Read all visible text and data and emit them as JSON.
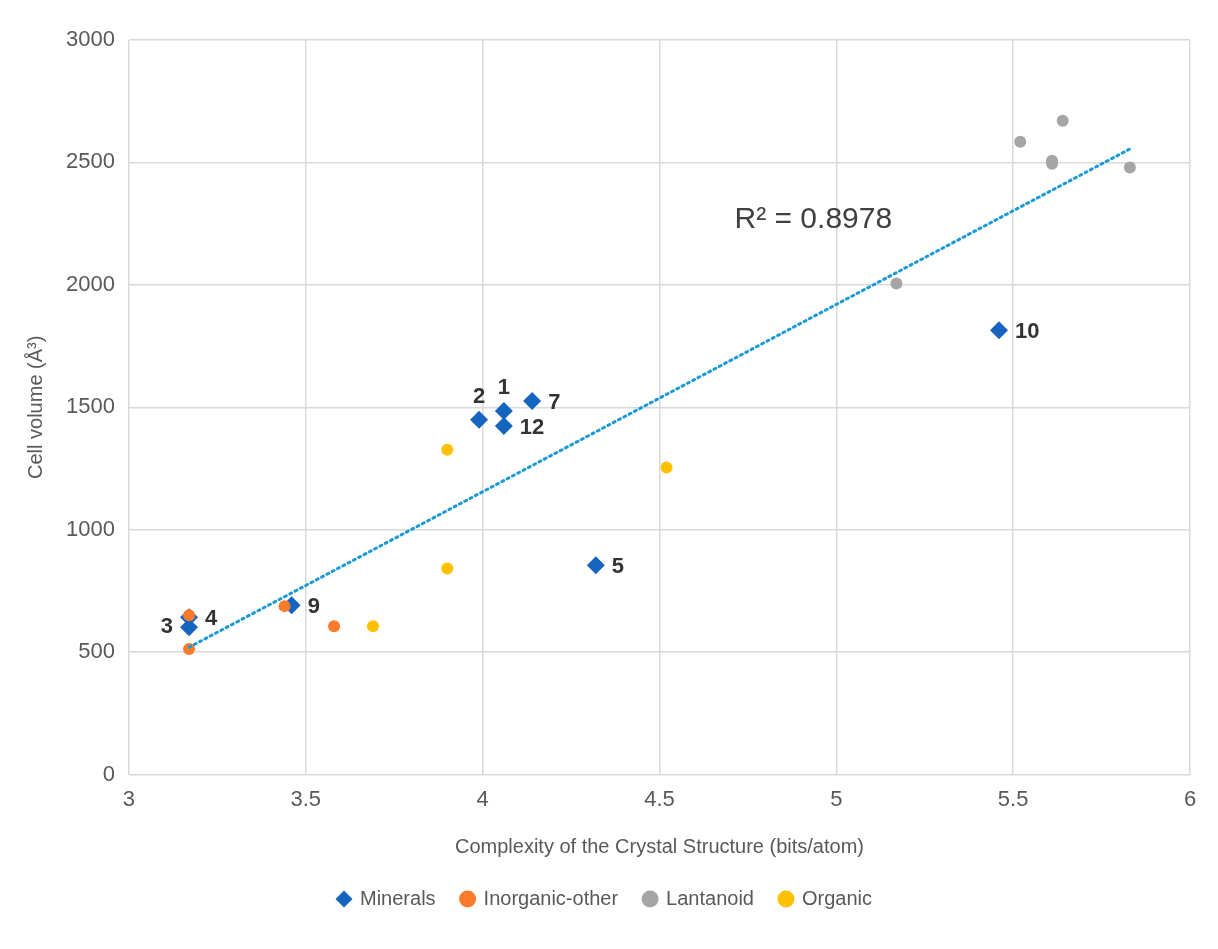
{
  "chart_data": {
    "type": "scatter",
    "xlabel": "Complexity of the Crystal Structure (bits/atom)",
    "ylabel": "Cell volume (Å³)",
    "xlim": [
      3,
      6
    ],
    "xticks": [
      3,
      3.5,
      4,
      4.5,
      5,
      5.5,
      6
    ],
    "ylim": [
      0,
      3000
    ],
    "yticks": [
      0,
      500,
      1000,
      1500,
      2000,
      2500,
      3000
    ],
    "grid": true,
    "legend": "bottom",
    "annotations": [
      "R² = 0.8978",
      {
        "text": "12",
        "x": 4.06,
        "y": 1424
      },
      {
        "text": "1",
        "x": 4.06,
        "y": 1485
      },
      {
        "text": "2",
        "x": 3.99,
        "y": 1449
      },
      {
        "text": "7",
        "x": 4.14,
        "y": 1526
      },
      {
        "text": "4",
        "x": 3.17,
        "y": 643
      },
      {
        "text": "3",
        "x": 3.17,
        "y": 602
      },
      {
        "text": "5",
        "x": 4.32,
        "y": 855
      },
      {
        "text": "9",
        "x": 3.46,
        "y": 692
      },
      {
        "text": "10",
        "x": 5.46,
        "y": 1815
      }
    ],
    "series": [
      {
        "name": "Minerals",
        "color": "#1565c0",
        "marker": "diamond",
        "x": [
          4.06,
          3.99,
          3.17,
          3.17,
          4.32,
          4.14,
          3.46,
          5.46,
          4.06
        ],
        "values": [
          1485,
          1449,
          602,
          643,
          855,
          1526,
          692,
          1815,
          1424
        ]
      },
      {
        "name": "Inorganic-other",
        "color": "#fb7b2a",
        "marker": "circle",
        "x": [
          3.17,
          3.17,
          3.44,
          3.58
        ],
        "values": [
          651,
          513,
          688,
          606
        ]
      },
      {
        "name": "Lantanoid",
        "color": "#a5a5a5",
        "marker": "circle",
        "x": [
          5.17,
          5.52,
          5.64,
          5.61,
          5.61,
          5.83
        ],
        "values": [
          2006,
          2584,
          2670,
          2507,
          2495,
          2479
        ]
      },
      {
        "name": "Organic",
        "color": "#ffc000",
        "marker": "circle",
        "x": [
          3.9,
          3.9,
          3.69,
          4.52
        ],
        "values": [
          1327,
          842,
          606,
          1254
        ]
      },
      {
        "type": "line",
        "color": "#1b9ad6",
        "marker": "none",
        "line_style": "dotted",
        "x": [
          3.17,
          5.83
        ],
        "values": [
          520,
          2555
        ]
      }
    ]
  }
}
